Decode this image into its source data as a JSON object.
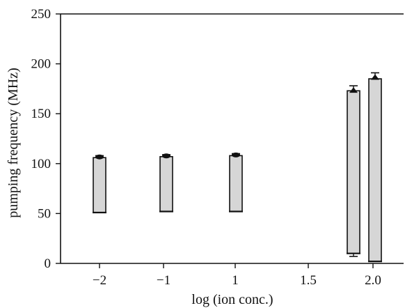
{
  "chart_data": {
    "type": "box",
    "title": "",
    "xlabel": "log (ion conc.)",
    "ylabel": "pumping frequency (MHz)",
    "ylim": [
      0,
      250
    ],
    "yticks": [
      "0",
      "50",
      "100",
      "150",
      "200",
      "250"
    ],
    "x_tick_labels": [
      "−2",
      "−1",
      "1",
      "1.5",
      "2.0"
    ],
    "grid": false,
    "legend": "none",
    "series": [
      {
        "x": "−2",
        "low": 51,
        "high": 106,
        "whisker_high": 108,
        "marker": "circle"
      },
      {
        "x": "−1",
        "low": 52,
        "high": 107,
        "whisker_high": 109,
        "marker": "circle"
      },
      {
        "x": "1",
        "low": 52,
        "high": 108,
        "whisker_high": 110,
        "marker": "circle"
      },
      {
        "x": "2.0 (left)",
        "low": 10,
        "high": 173,
        "whisker_low": 7,
        "whisker_high": 178,
        "marker": "triangle"
      },
      {
        "x": "2.0 (right)",
        "low": 2,
        "high": 185,
        "whisker_high": 191,
        "marker": "triangle"
      }
    ],
    "colors": {
      "box_fill": "#d6d6d6",
      "box_stroke": "#111111",
      "marker": "#111111"
    }
  }
}
